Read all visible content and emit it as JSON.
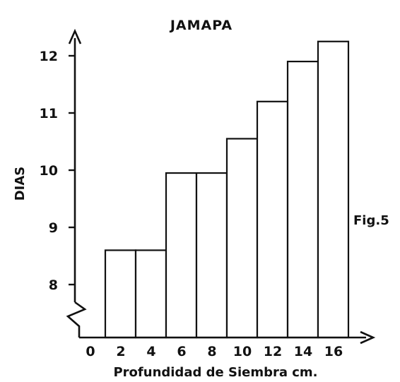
{
  "chart_data": {
    "type": "bar",
    "title": "JAMAPA",
    "xlabel": "Profundidad de Siembra cm.",
    "ylabel": "DIAS",
    "figure_label": "Fig.5",
    "categories": [
      "2",
      "4",
      "6",
      "8",
      "10",
      "12",
      "14",
      "16"
    ],
    "x_tick_labels": [
      "0",
      "2",
      "4",
      "6",
      "8",
      "10",
      "12",
      "14",
      "16"
    ],
    "y_tick_labels": [
      "8",
      "9",
      "10",
      "11",
      "12"
    ],
    "y_ticks": [
      8,
      9,
      10,
      11,
      12
    ],
    "values": [
      8.6,
      8.6,
      9.95,
      9.95,
      10.55,
      11.2,
      11.9,
      12.25
    ],
    "ylim": [
      7.2,
      12.6
    ],
    "axis_break": true,
    "grid": false,
    "legend": "none"
  }
}
